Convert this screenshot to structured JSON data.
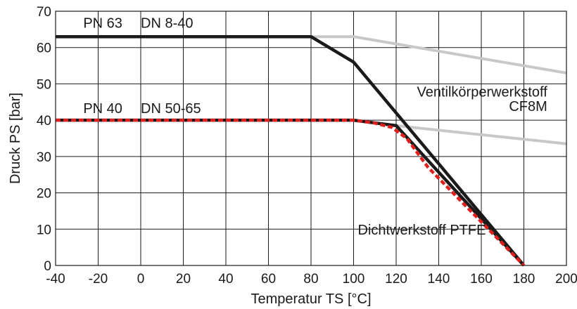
{
  "chart_data": {
    "type": "line",
    "title": "",
    "xlabel": "Temperatur TS [°C]",
    "ylabel": "Druck PS [bar]",
    "xlim": [
      -40,
      200
    ],
    "ylim": [
      0,
      70
    ],
    "xticks": [
      -40,
      -20,
      0,
      20,
      40,
      60,
      80,
      100,
      120,
      140,
      160,
      180,
      200
    ],
    "yticks": [
      0,
      10,
      20,
      30,
      40,
      50,
      60,
      70
    ],
    "xtick_labels": [
      "-40",
      "-20",
      "0",
      "20",
      "40",
      "60",
      "80",
      "100",
      "120",
      "140",
      "160",
      "180",
      "200"
    ],
    "ytick_labels": [
      "0",
      "10",
      "20",
      "30",
      "40",
      "50",
      "60",
      "70"
    ],
    "grid": true,
    "series": [
      {
        "color": "#c8c8c8",
        "style": "solid",
        "x": [
          80,
          100,
          200
        ],
        "y": [
          63,
          63,
          53
        ]
      },
      {
        "color": "#c8c8c8",
        "style": "solid",
        "x": [
          120,
          200
        ],
        "y": [
          38.5,
          33.5
        ]
      },
      {
        "color": "#1a1a1a",
        "style": "solid",
        "x": [
          -40,
          80,
          100,
          180
        ],
        "y": [
          63,
          63,
          56,
          0
        ]
      },
      {
        "color": "#1a1a1a",
        "style": "solid",
        "x": [
          -40,
          100,
          120,
          180
        ],
        "y": [
          40,
          40,
          38.5,
          0
        ]
      },
      {
        "color": "#e0201e",
        "style": "dashed",
        "x": [
          -40,
          100,
          110,
          118,
          125,
          135,
          180
        ],
        "y": [
          40,
          40,
          39.2,
          38,
          35,
          27,
          0
        ]
      }
    ],
    "annotations": [
      {
        "id": "pn63",
        "text": "PN 63",
        "x": -27,
        "y": 65.5
      },
      {
        "id": "dn840",
        "text": "DN 8-40",
        "x": 0,
        "y": 65.5
      },
      {
        "id": "pn40",
        "text": "PN 40",
        "x": -27,
        "y": 42
      },
      {
        "id": "dn5065",
        "text": "DN 50-65",
        "x": 0,
        "y": 42
      },
      {
        "id": "ventil1",
        "text": "Ventilkörperwerkstoff",
        "x": 191,
        "y": 46.5
      },
      {
        "id": "ventil2",
        "text": "CF8M",
        "x": 191,
        "y": 42.5
      },
      {
        "id": "dicht",
        "text": "Dichtwerkstoff PTFE",
        "x": 102,
        "y": 8.5
      }
    ]
  }
}
